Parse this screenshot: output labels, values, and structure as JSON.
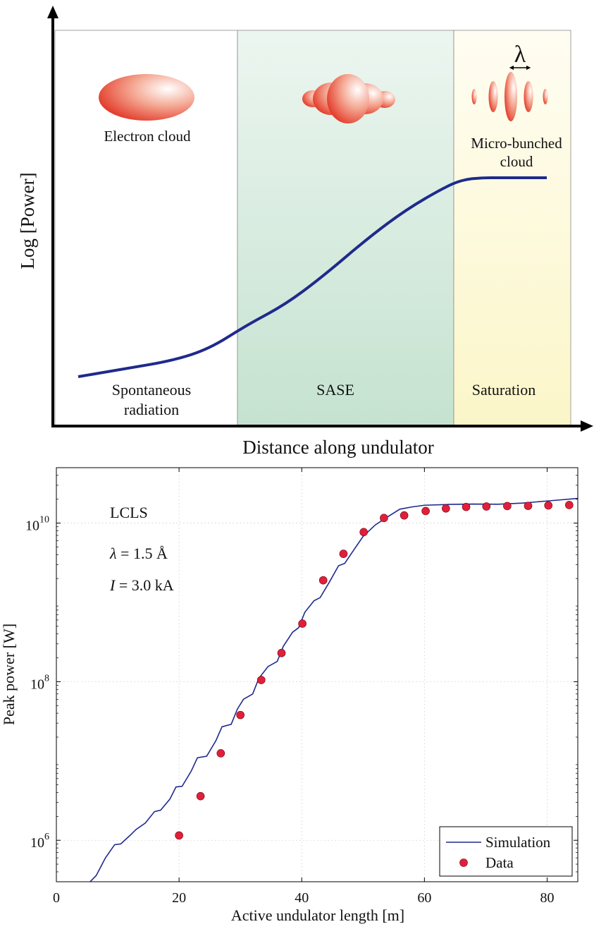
{
  "chart_data": [
    {
      "type": "line",
      "title": "",
      "xlabel": "Distance along undulator",
      "ylabel": "Log [Power]",
      "regions": [
        {
          "name": "Spontaneous radiation",
          "label_lines": [
            "Spontaneous",
            "radiation"
          ],
          "color": "#ffffff"
        },
        {
          "name": "SASE",
          "label_lines": [
            "SASE"
          ],
          "color": "#d6ecdf"
        },
        {
          "name": "Saturation",
          "label_lines": [
            "Saturation"
          ],
          "color": "#fdfbe0"
        }
      ],
      "annotations": [
        {
          "text": "Electron cloud",
          "lines": [
            "Electron cloud"
          ]
        },
        {
          "text": "Micro-bunched cloud",
          "lines": [
            "Micro-bunched",
            "cloud"
          ]
        },
        {
          "text": "λ",
          "lines": [
            "λ"
          ]
        }
      ],
      "series": [
        {
          "x": [
            0.0,
            0.1,
            0.2,
            0.28,
            0.36,
            0.44,
            0.52,
            0.62,
            0.7,
            0.78,
            0.82,
            0.86,
            0.9,
            0.94,
            0.98,
            1.0
          ],
          "y": [
            0.0,
            0.04,
            0.08,
            0.14,
            0.26,
            0.36,
            0.5,
            0.7,
            0.84,
            0.95,
            0.99,
            1.0,
            1.0,
            1.0,
            1.0,
            1.0
          ],
          "color": "#1f2a8c"
        }
      ],
      "grid": false
    },
    {
      "type": "line",
      "title": "",
      "xlabel": "Active undulator length [m]",
      "ylabel": "Peak power [W]",
      "xlim": [
        0,
        85
      ],
      "ylim": [
        300000,
        50000000000
      ],
      "yscale": "log",
      "xticks": [
        0,
        20,
        40,
        60,
        80
      ],
      "ytick_values": [
        1000000,
        100000000,
        10000000000
      ],
      "ytick_labels": [
        {
          "base": "10",
          "exp": "6"
        },
        {
          "base": "10",
          "exp": "8"
        },
        {
          "base": "10",
          "exp": "10"
        }
      ],
      "legend": "bottom-right",
      "grid": true,
      "annotations": [
        {
          "text": "LCLS"
        },
        {
          "sym": "λ",
          "text": " = 1.5 Å"
        },
        {
          "sym": "I",
          "text": " = 3.0 kA"
        }
      ],
      "series": [
        {
          "name": "Simulation",
          "style": "line",
          "color": "#1f2a8c",
          "x": [
            5.5,
            6.5,
            8,
            9.5,
            10.5,
            12,
            13,
            14.5,
            16,
            17,
            18.5,
            19.5,
            20.5,
            22,
            23,
            24.5,
            26,
            27,
            28.5,
            29.5,
            30.5,
            32,
            33,
            34.5,
            36,
            37,
            38.5,
            39.5,
            40.5,
            42,
            43,
            44.5,
            46,
            47,
            48.5,
            50,
            52,
            54,
            56,
            58,
            60,
            64,
            68,
            72,
            76,
            80,
            85
          ],
          "y": [
            300000,
            360000,
            600000,
            880000,
            900000,
            1150000,
            1370000,
            1650000,
            2300000,
            2400000,
            3300000,
            4700000,
            4800000,
            7500000,
            11000000,
            11500000,
            18000000,
            27000000,
            29000000,
            45000000,
            60000000,
            70000000,
            110000000,
            155000000,
            180000000,
            280000000,
            420000000,
            480000000,
            750000000,
            1050000000,
            1150000000,
            1800000000,
            2900000000,
            3100000000,
            4600000000,
            6800000000,
            9500000000,
            12000000000,
            15000000000,
            16000000000,
            16800000000,
            17200000000,
            17400000000,
            17300000000,
            17900000000,
            19000000000,
            20500000000
          ]
        },
        {
          "name": "Data",
          "style": "scatter",
          "color": "#e0203a",
          "x": [
            20,
            23.5,
            26.8,
            30,
            33.4,
            36.7,
            40.1,
            43.5,
            46.8,
            50.1,
            53.4,
            56.7,
            60.2,
            63.5,
            66.8,
            70.1,
            73.5,
            76.9,
            80.2,
            83.6
          ],
          "y": [
            1150000,
            3600000,
            12500000,
            38000000,
            105000000,
            230000000,
            540000000,
            1900000000,
            4100000000,
            7700000000,
            11600000000,
            12500000000,
            14200000000,
            15300000000,
            16000000000,
            16200000000,
            16400000000,
            16500000000,
            16700000000,
            16900000000
          ]
        }
      ]
    }
  ]
}
